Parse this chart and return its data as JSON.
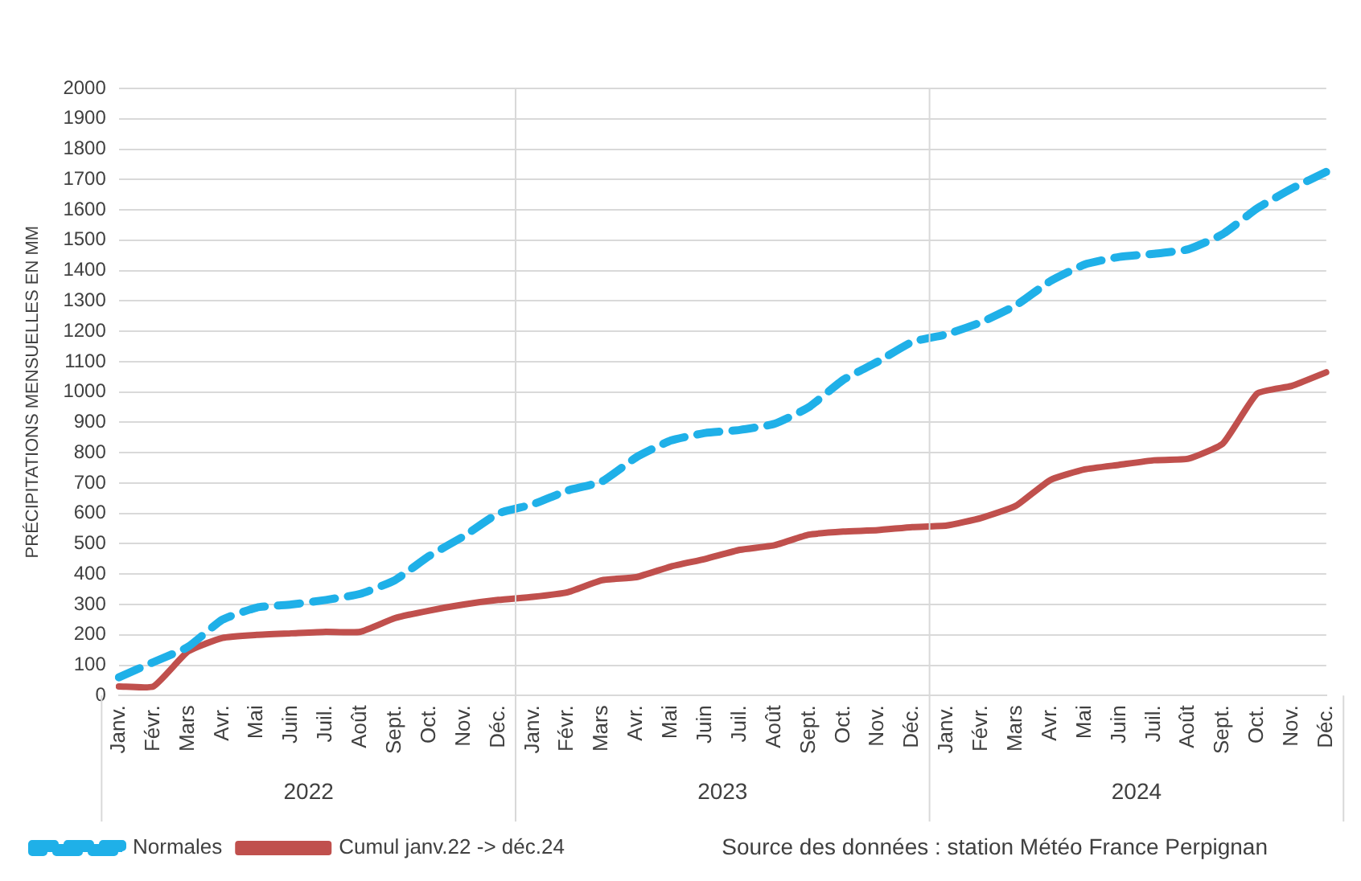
{
  "chart_data": {
    "type": "line",
    "ylabel": "PRÉCIPITATIONS MENSUELLES EN MM",
    "categories": [
      "Janv.",
      "Févr.",
      "Mars",
      "Avr.",
      "Mai",
      "Juin",
      "Juil.",
      "Août",
      "Sept.",
      "Oct.",
      "Nov.",
      "Déc.",
      "Janv.",
      "Févr.",
      "Mars",
      "Avr.",
      "Mai",
      "Juin",
      "Juil.",
      "Août",
      "Sept.",
      "Oct.",
      "Nov.",
      "Déc.",
      "Janv.",
      "Févr.",
      "Mars",
      "Avr.",
      "Mai",
      "Juin",
      "Juil.",
      "Août",
      "Sept.",
      "Oct.",
      "Nov.",
      "Déc."
    ],
    "series": [
      {
        "name": "Normales",
        "color": "#1fb0e8",
        "line_style": "dashed",
        "values": [
          60,
          110,
          160,
          250,
          290,
          300,
          315,
          335,
          380,
          460,
          525,
          600,
          630,
          675,
          705,
          785,
          840,
          865,
          875,
          895,
          950,
          1040,
          1100,
          1165,
          1190,
          1230,
          1285,
          1365,
          1420,
          1445,
          1455,
          1470,
          1520,
          1605,
          1670,
          1725
        ]
      },
      {
        "name": "Cumul janv.22 -> déc.24",
        "color": "#c0504d",
        "line_style": "solid",
        "values": [
          30,
          30,
          145,
          190,
          200,
          205,
          210,
          210,
          255,
          280,
          300,
          315,
          325,
          340,
          380,
          390,
          425,
          450,
          480,
          495,
          530,
          540,
          545,
          555,
          560,
          585,
          625,
          710,
          745,
          760,
          775,
          780,
          830,
          995,
          1020,
          1065
        ]
      }
    ],
    "ylim": [
      0,
      2000
    ],
    "yticks": [
      0,
      100,
      200,
      300,
      400,
      500,
      600,
      700,
      800,
      900,
      1000,
      1100,
      1200,
      1300,
      1400,
      1500,
      1600,
      1700,
      1800,
      1900,
      2000
    ],
    "grid": "y",
    "legend": "bottom left",
    "marker": "none",
    "annotations": [
      "2022",
      "2023",
      "2024",
      "Source des données : station Météo France Perpignan"
    ]
  }
}
